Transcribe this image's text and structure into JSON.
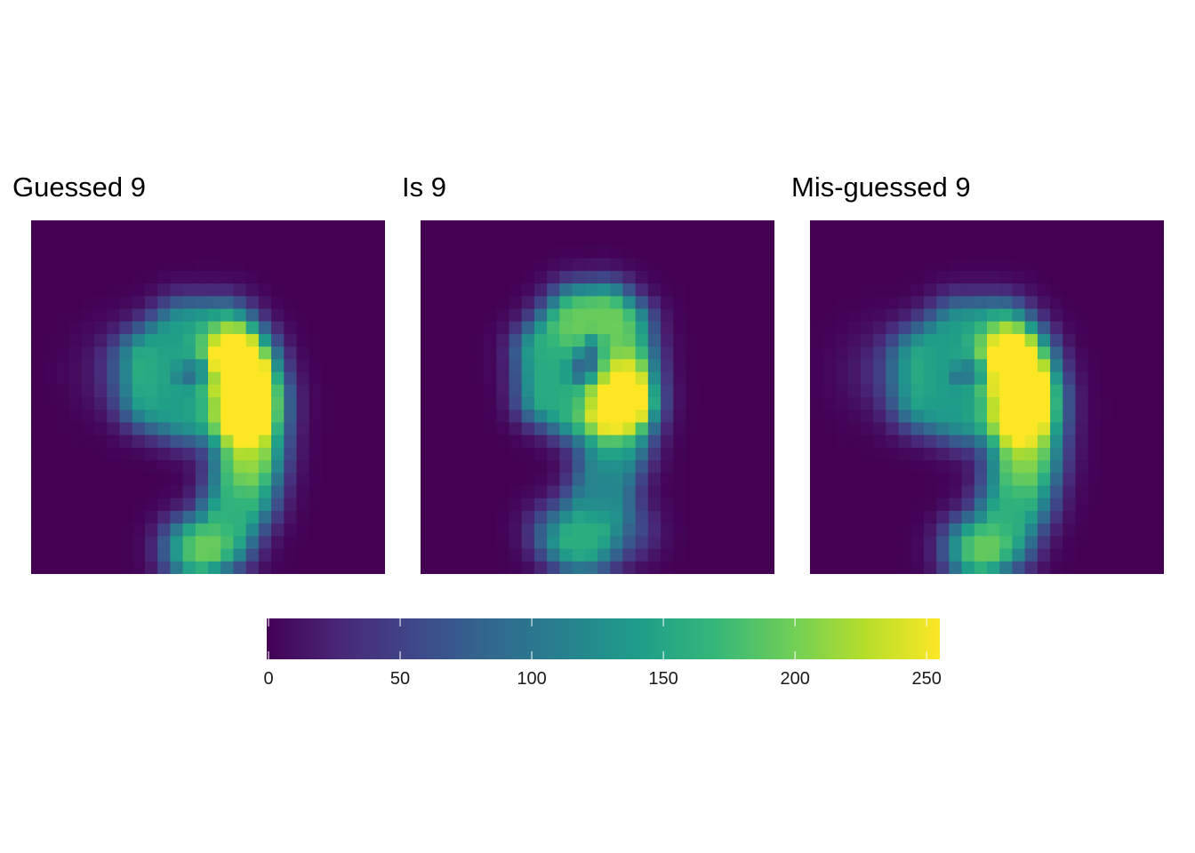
{
  "chart_data": {
    "type": "heatmap",
    "grid_size": [
      28,
      28
    ],
    "panels": [
      {
        "title": "Guessed 9",
        "digit": 9,
        "strokes": [
          {
            "pts": [
              [
                12.2,
                9.0
              ],
              [
                15.0,
                9.0
              ],
              [
                16.4,
                11.6
              ],
              [
                16.4,
                14.6
              ],
              [
                12.2,
                14.9
              ],
              [
                9.8,
                14.0
              ],
              [
                9.7,
                11.0
              ],
              [
                12.2,
                9.0
              ]
            ],
            "w": 1.5,
            "v": 140
          },
          {
            "pts": [
              [
                16.4,
                11.0
              ],
              [
                17.4,
                14.0
              ],
              [
                17.2,
                18.5
              ],
              [
                16.6,
                22.0
              ],
              [
                15.0,
                25.0
              ],
              [
                13.2,
                26.0
              ]
            ],
            "w": 1.5,
            "v": 160
          },
          {
            "pts": [
              [
                17.4,
                13.5
              ],
              [
                17.8,
                15.8
              ],
              [
                17.4,
                19.0
              ]
            ],
            "w": 0.85,
            "v": 50
          }
        ],
        "blur": 1.5,
        "spread": [
          [
            7.0,
            12.0,
            2.2,
            28
          ],
          [
            14.0,
            26.0,
            1.3,
            40
          ]
        ]
      },
      {
        "title": "Is 9",
        "digit": 9,
        "strokes": [
          {
            "pts": [
              [
                12.5,
                7.5
              ],
              [
                14.5,
                7.4
              ],
              [
                15.8,
                8.6
              ],
              [
                16.0,
                11.0
              ],
              [
                16.0,
                14.0
              ],
              [
                12.2,
                14.8
              ],
              [
                10.2,
                13.8
              ],
              [
                10.0,
                10.4
              ],
              [
                12.5,
                7.5
              ]
            ],
            "w": 1.4,
            "v": 155
          },
          {
            "pts": [
              [
                15.0,
                7.8
              ],
              [
                12.5,
                8.2
              ]
            ],
            "w": 0.7,
            "v": 40
          },
          {
            "pts": [
              [
                16.4,
                12.0
              ],
              [
                16.4,
                15.0
              ]
            ],
            "w": 0.8,
            "v": 50
          },
          {
            "pts": [
              [
                16.0,
                14.5
              ],
              [
                15.5,
                18.0
              ],
              [
                14.5,
                21.0
              ],
              [
                13.2,
                24.5
              ],
              [
                12.5,
                25.5
              ]
            ],
            "w": 1.6,
            "v": 110
          },
          {
            "pts": [
              [
                10.5,
                24.6
              ],
              [
                14.8,
                25.6
              ],
              [
                16.5,
                24.6
              ]
            ],
            "w": 0.9,
            "v": 50
          }
        ],
        "blur": 1.4,
        "spread": [
          [
            15.2,
            17.5,
            1.8,
            30
          ]
        ]
      },
      {
        "title": "Mis-guessed 9",
        "digit": 9,
        "strokes": [
          {
            "pts": [
              [
                12.0,
                9.0
              ],
              [
                14.8,
                9.0
              ],
              [
                16.2,
                11.6
              ],
              [
                16.2,
                14.6
              ],
              [
                12.0,
                14.9
              ],
              [
                9.4,
                14.0
              ],
              [
                9.4,
                11.0
              ],
              [
                12.0,
                9.0
              ]
            ],
            "w": 1.5,
            "v": 138
          },
          {
            "pts": [
              [
                16.2,
                11.0
              ],
              [
                17.2,
                14.0
              ],
              [
                17.0,
                18.5
              ],
              [
                16.4,
                22.0
              ],
              [
                15.0,
                25.0
              ],
              [
                13.4,
                26.0
              ]
            ],
            "w": 1.5,
            "v": 158
          },
          {
            "pts": [
              [
                17.2,
                13.5
              ],
              [
                17.6,
                15.8
              ],
              [
                17.2,
                19.0
              ]
            ],
            "w": 0.8,
            "v": 45
          }
        ],
        "blur": 1.55,
        "spread": [
          [
            6.0,
            12.0,
            2.3,
            30
          ],
          [
            14.0,
            26.0,
            1.3,
            40
          ]
        ]
      }
    ],
    "color_scale": {
      "name": "viridis",
      "range": [
        0,
        255
      ],
      "ticks": [
        0,
        50,
        100,
        150,
        200,
        250
      ],
      "stops": [
        "#440154",
        "#482878",
        "#3e4989",
        "#31688e",
        "#26828e",
        "#1f9e89",
        "#35b779",
        "#6ece58",
        "#b5de2b",
        "#fde725"
      ]
    },
    "legend_position": "bottom",
    "xlabel": "",
    "ylabel": ""
  }
}
